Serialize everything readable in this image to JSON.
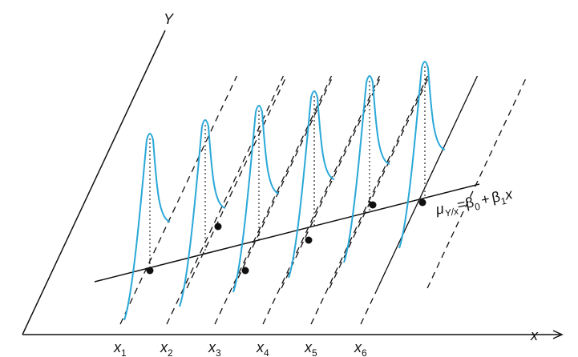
{
  "diagram": {
    "y_axis_label": "Y",
    "x_axis_label": "x",
    "x_ticks": [
      {
        "main": "x",
        "sub": "1"
      },
      {
        "main": "x",
        "sub": "2"
      },
      {
        "main": "x",
        "sub": "3"
      },
      {
        "main": "x",
        "sub": "4"
      },
      {
        "main": "x",
        "sub": "5"
      },
      {
        "main": "x",
        "sub": "6"
      }
    ],
    "equation": {
      "mu": "μ",
      "mu_sub": "Y/x",
      "equals": "=",
      "beta0": "β",
      "beta0_sub": "0",
      "plus": "+",
      "beta1": "β",
      "beta1_sub": "1",
      "var": "x"
    }
  }
}
